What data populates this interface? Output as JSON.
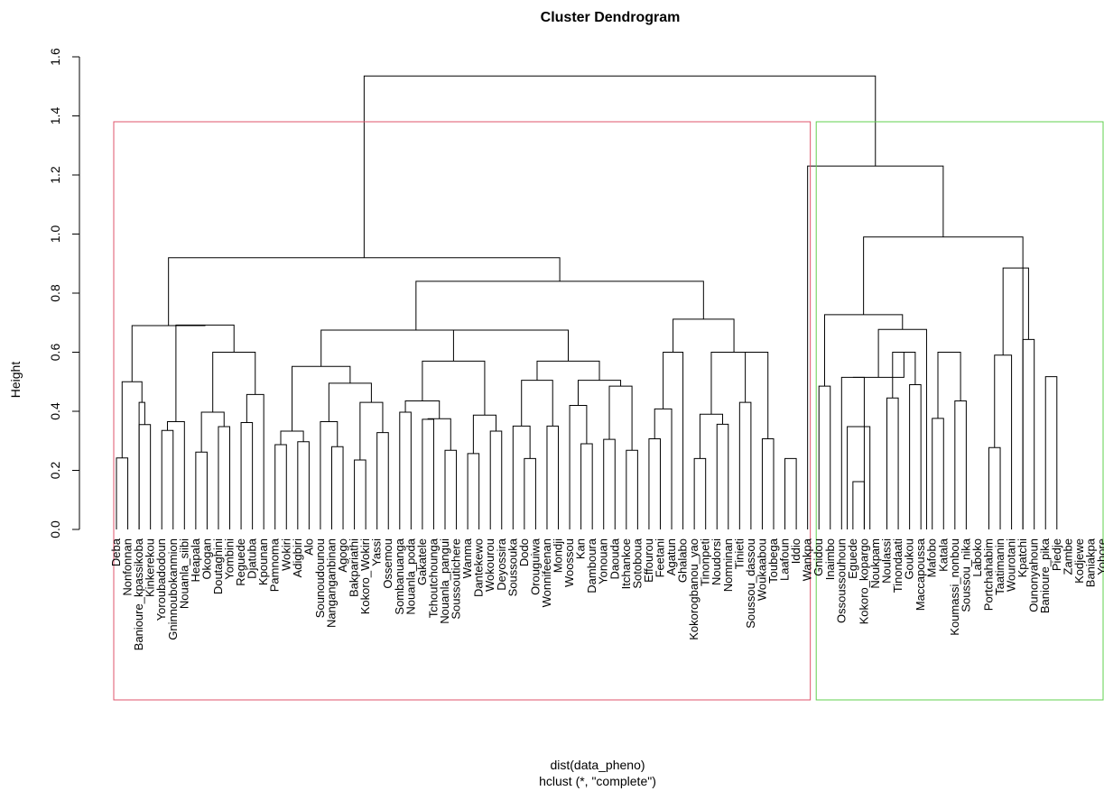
{
  "chart_data": {
    "type": "dendrogram",
    "title": "Cluster Dendrogram",
    "ylabel": "Height",
    "xlabel": "dist(data_pheno)",
    "sublabel": "hclust (*, \"complete\")",
    "ylim": [
      0,
      1.6
    ],
    "yticks": [
      "0.0",
      "0.2",
      "0.4",
      "0.6",
      "0.8",
      "1.0",
      "1.2",
      "1.4",
      "1.6"
    ],
    "leaves": [
      "Deba",
      "Nonfonnan",
      "Banioure_kpassikoba",
      "Kinkerekou",
      "Yoroubadodoun",
      "Gninnoubokanmion",
      "Nouanla_siibi",
      "Heapala",
      "Okogan",
      "Doutaghini",
      "Yombini",
      "Reguede",
      "Djatuba",
      "Kpounan",
      "Pamnoma",
      "Wokiri",
      "Adigbiri",
      "Alo",
      "Sounoudounou",
      "Nanganganbinan",
      "Agogo",
      "Bakpariathi",
      "Kokoro_Wokiri",
      "Yassi",
      "Ossemou",
      "Sombanuanga",
      "Nouanla_poda",
      "Gakatele",
      "Tchoutchounga",
      "Nouanla_pangui",
      "Soussoutichere",
      "Wanma",
      "Dantekewo",
      "Wokourou",
      "Deyossira",
      "Soussouka",
      "Dodo",
      "Orouguiwa",
      "Wonnifeenan",
      "Mondji",
      "Woossou",
      "Kan",
      "Damboura",
      "Yonouan",
      "Daouda",
      "Itchankoe",
      "Sotoboua",
      "Effourou",
      "Feetani",
      "Agatun",
      "Ghalabo",
      "Kokorogbanou_yao",
      "Tinonpeti",
      "Noudorsi",
      "Nomninan",
      "Tinieti",
      "Soussou_dassou",
      "Woukaabou",
      "Toubega",
      "Laafoun",
      "Iddio",
      "Wankpa",
      "Gnidou",
      "Inaimbo",
      "Ossoussouhoun",
      "Eguede",
      "Kokoro_kopargo",
      "Noukpam",
      "Noulassi",
      "Tinondaati",
      "Goukou",
      "Maccapoussa",
      "Mafobo",
      "Katala",
      "Koumassi_nonbou",
      "Soussou_nika",
      "Laboko",
      "Portchahabim",
      "Taatimanin",
      "Wourotani",
      "Kpatchi",
      "Ounonyahoun",
      "Banioure_pika",
      "Piedje",
      "Zambe",
      "Kodjewe",
      "Baniakpa",
      "Yohore"
    ],
    "merges": [
      [
        0,
        1,
        0.242
      ],
      [
        2,
        3,
        0.355
      ],
      [
        4,
        5,
        0.335
      ],
      [
        7,
        8,
        0.262
      ],
      [
        9,
        10,
        0.348
      ],
      [
        11,
        12,
        0.362
      ],
      [
        14,
        15,
        0.287
      ],
      [
        16,
        17,
        0.297
      ],
      [
        19,
        20,
        0.28
      ],
      [
        21,
        22,
        0.235
      ],
      [
        23,
        24,
        0.328
      ],
      [
        25,
        26,
        0.397
      ],
      [
        27,
        28,
        0.373
      ],
      [
        29,
        30,
        0.268
      ],
      [
        31,
        32,
        0.257
      ],
      [
        33,
        34,
        0.333
      ],
      [
        36,
        37,
        0.24
      ],
      [
        38,
        39,
        0.35
      ],
      [
        41,
        42,
        0.29
      ],
      [
        43,
        44,
        0.305
      ],
      [
        45,
        46,
        0.268
      ],
      [
        47,
        48,
        0.307
      ],
      [
        51,
        52,
        0.24
      ],
      [
        53,
        54,
        0.356
      ],
      [
        55,
        56,
        0.43
      ],
      [
        57,
        58,
        0.307
      ],
      [
        59,
        60,
        0.24
      ],
      [
        62,
        63,
        0.485
      ],
      [
        65,
        66,
        0.162
      ],
      [
        68,
        69,
        0.445
      ],
      [
        70,
        71,
        0.49
      ],
      [
        72,
        73,
        0.376
      ],
      [
        74,
        75,
        0.435
      ],
      [
        77,
        78,
        0.277
      ],
      [
        80,
        81,
        0.643
      ],
      [
        82,
        83,
        0.517
      ],
      [
        [
          1,
          3
        ],
        [
          2,
          3
        ],
        0.43
      ],
      [
        [
          0,
          1
        ],
        [
          1,
          3
        ],
        0.5
      ],
      [
        [
          4,
          5
        ],
        6,
        0.365
      ],
      [
        [
          7,
          8
        ],
        [
          9,
          10
        ],
        0.397
      ],
      [
        [
          11,
          12
        ],
        13,
        0.457
      ],
      [
        [
          7,
          10
        ],
        [
          11,
          13
        ],
        0.6
      ],
      [
        [
          4,
          6
        ],
        [
          7,
          13
        ],
        0.692
      ],
      [
        [
          16,
          17
        ],
        [
          14,
          15
        ],
        0.333
      ],
      [
        18,
        [
          19,
          20
        ],
        0.365
      ],
      [
        [
          21,
          22
        ],
        [
          23,
          24
        ],
        0.43
      ],
      [
        [
          18,
          20
        ],
        [
          21,
          24
        ],
        0.495
      ],
      [
        [
          14,
          17
        ],
        [
          18,
          24
        ],
        0.552
      ],
      [
        [
          27,
          28
        ],
        [
          29,
          30
        ],
        0.375
      ],
      [
        [
          25,
          26
        ],
        [
          27,
          30
        ],
        0.435
      ],
      [
        [
          31,
          32
        ],
        [
          33,
          34
        ],
        0.387
      ],
      [
        [
          25,
          30
        ],
        [
          31,
          34
        ],
        0.57
      ],
      [
        35,
        [
          36,
          37
        ],
        0.35
      ],
      [
        [
          35,
          37
        ],
        [
          38,
          39
        ],
        0.505
      ],
      [
        40,
        [
          41,
          42
        ],
        0.42
      ],
      [
        [
          43,
          44
        ],
        [
          45,
          46
        ],
        0.485
      ],
      [
        [
          40,
          42
        ],
        [
          43,
          46
        ],
        0.505
      ],
      [
        [
          35,
          39
        ],
        [
          40,
          46
        ],
        0.57
      ],
      [
        [
          25,
          34
        ],
        [
          35,
          46
        ],
        0.675
      ],
      [
        [
          14,
          24
        ],
        [
          25,
          46
        ],
        0.675
      ],
      [
        [
          47,
          48
        ],
        49,
        0.408
      ],
      [
        [
          47,
          49
        ],
        50,
        0.6
      ],
      [
        [
          51,
          52
        ],
        [
          53,
          54
        ],
        0.39
      ],
      [
        [
          55,
          56
        ],
        [
          57,
          58
        ],
        0.6
      ],
      [
        [
          51,
          54
        ],
        [
          55,
          58
        ],
        0.6
      ],
      [
        [
          47,
          50
        ],
        [
          51,
          58
        ],
        0.712
      ],
      [
        [
          14,
          46
        ],
        [
          47,
          58
        ],
        0.84
      ],
      [
        [
          0,
          3
        ],
        [
          4,
          13
        ],
        0.69
      ],
      [
        [
          0,
          13
        ],
        [
          14,
          58
        ],
        0.92
      ],
      [
        [
          64,
          65
        ],
        [
          66,
          67
        ],
        0.348
      ],
      [
        [
          65,
          67
        ],
        64,
        0.515
      ],
      [
        [
          68,
          69
        ],
        [
          70,
          71
        ],
        0.6
      ],
      [
        [
          64,
          67
        ],
        [
          68,
          71
        ],
        0.515
      ],
      [
        [
          72,
          73
        ],
        [
          74,
          75
        ],
        0.6
      ],
      [
        [
          68,
          75
        ],
        [
          64,
          71
        ],
        0.677
      ],
      [
        [
          64,
          75
        ],
        [
          62,
          63
        ],
        0.727
      ],
      [
        [
          77,
          78
        ],
        79,
        0.59
      ],
      [
        [
          77,
          79
        ],
        [
          80,
          81
        ],
        0.885
      ],
      [
        [
          62,
          75
        ],
        [
          77,
          83
        ],
        0.99
      ],
      [
        61,
        [
          62,
          83
        ],
        1.23
      ],
      [
        [
          0,
          58
        ],
        [
          61,
          83
        ],
        1.535
      ]
    ],
    "rect_clusters": [
      {
        "from": 0,
        "to": 61,
        "color": "#DF536B"
      },
      {
        "from": 62,
        "to": 87,
        "color": "#61D04F"
      }
    ]
  }
}
